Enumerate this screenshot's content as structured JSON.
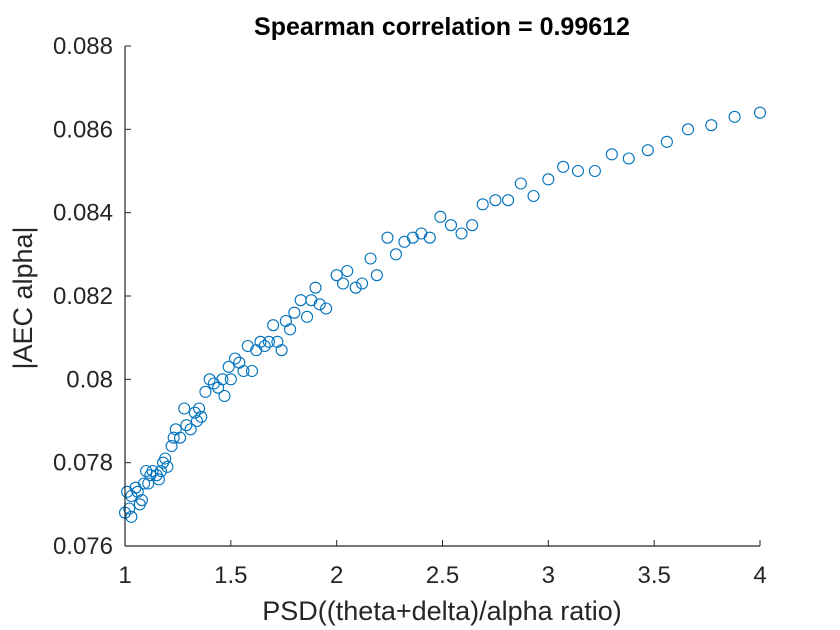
{
  "chart_data": {
    "type": "scatter",
    "title": "Spearman correlation = 0.99612",
    "xlabel": "PSD((theta+delta)/alpha ratio)",
    "ylabel": "|AEC alpha|",
    "xlim": [
      1,
      4
    ],
    "ylim": [
      0.076,
      0.088
    ],
    "x_ticks": [
      1,
      1.5,
      2,
      2.5,
      3,
      3.5,
      4
    ],
    "x_tick_labels": [
      "1",
      "1.5",
      "2",
      "2.5",
      "3",
      "3.5",
      "4"
    ],
    "y_ticks": [
      0.076,
      0.078,
      0.08,
      0.082,
      0.084,
      0.086,
      0.088
    ],
    "y_tick_labels": [
      "0.076",
      "0.078",
      "0.08",
      "0.082",
      "0.084",
      "0.086",
      "0.088"
    ],
    "grid": false,
    "marker": "circle-open",
    "color": "#0072BD",
    "points": [
      [
        1.0,
        0.0768
      ],
      [
        1.01,
        0.0773
      ],
      [
        1.02,
        0.0769
      ],
      [
        1.03,
        0.0767
      ],
      [
        1.03,
        0.0772
      ],
      [
        1.05,
        0.0774
      ],
      [
        1.06,
        0.0773
      ],
      [
        1.07,
        0.077
      ],
      [
        1.08,
        0.0771
      ],
      [
        1.09,
        0.0775
      ],
      [
        1.1,
        0.0778
      ],
      [
        1.11,
        0.0775
      ],
      [
        1.12,
        0.0777
      ],
      [
        1.13,
        0.0778
      ],
      [
        1.15,
        0.0777
      ],
      [
        1.16,
        0.0776
      ],
      [
        1.17,
        0.0778
      ],
      [
        1.18,
        0.078
      ],
      [
        1.19,
        0.0781
      ],
      [
        1.2,
        0.0779
      ],
      [
        1.22,
        0.0784
      ],
      [
        1.23,
        0.0786
      ],
      [
        1.24,
        0.0788
      ],
      [
        1.26,
        0.0786
      ],
      [
        1.28,
        0.0793
      ],
      [
        1.29,
        0.0789
      ],
      [
        1.31,
        0.0788
      ],
      [
        1.33,
        0.0792
      ],
      [
        1.34,
        0.079
      ],
      [
        1.35,
        0.0793
      ],
      [
        1.36,
        0.0791
      ],
      [
        1.38,
        0.0797
      ],
      [
        1.4,
        0.08
      ],
      [
        1.42,
        0.0799
      ],
      [
        1.44,
        0.0798
      ],
      [
        1.46,
        0.08
      ],
      [
        1.47,
        0.0796
      ],
      [
        1.49,
        0.0803
      ],
      [
        1.5,
        0.08
      ],
      [
        1.52,
        0.0805
      ],
      [
        1.54,
        0.0804
      ],
      [
        1.56,
        0.0802
      ],
      [
        1.58,
        0.0808
      ],
      [
        1.6,
        0.0802
      ],
      [
        1.62,
        0.0807
      ],
      [
        1.64,
        0.0809
      ],
      [
        1.66,
        0.0808
      ],
      [
        1.68,
        0.0809
      ],
      [
        1.7,
        0.0813
      ],
      [
        1.72,
        0.0809
      ],
      [
        1.74,
        0.0807
      ],
      [
        1.76,
        0.0814
      ],
      [
        1.78,
        0.0812
      ],
      [
        1.8,
        0.0816
      ],
      [
        1.83,
        0.0819
      ],
      [
        1.86,
        0.0815
      ],
      [
        1.88,
        0.0819
      ],
      [
        1.9,
        0.0822
      ],
      [
        1.92,
        0.0818
      ],
      [
        1.95,
        0.0817
      ],
      [
        2.0,
        0.0825
      ],
      [
        2.03,
        0.0823
      ],
      [
        2.05,
        0.0826
      ],
      [
        2.09,
        0.0822
      ],
      [
        2.12,
        0.0823
      ],
      [
        2.16,
        0.0829
      ],
      [
        2.19,
        0.0825
      ],
      [
        2.24,
        0.0834
      ],
      [
        2.28,
        0.083
      ],
      [
        2.32,
        0.0833
      ],
      [
        2.36,
        0.0834
      ],
      [
        2.4,
        0.0835
      ],
      [
        2.44,
        0.0834
      ],
      [
        2.49,
        0.0839
      ],
      [
        2.54,
        0.0837
      ],
      [
        2.59,
        0.0835
      ],
      [
        2.64,
        0.0837
      ],
      [
        2.69,
        0.0842
      ],
      [
        2.75,
        0.0843
      ],
      [
        2.81,
        0.0843
      ],
      [
        2.87,
        0.0847
      ],
      [
        2.93,
        0.0844
      ],
      [
        3.0,
        0.0848
      ],
      [
        3.07,
        0.0851
      ],
      [
        3.14,
        0.085
      ],
      [
        3.22,
        0.085
      ],
      [
        3.3,
        0.0854
      ],
      [
        3.38,
        0.0853
      ],
      [
        3.47,
        0.0855
      ],
      [
        3.56,
        0.0857
      ],
      [
        3.66,
        0.086
      ],
      [
        3.77,
        0.0861
      ],
      [
        3.88,
        0.0863
      ],
      [
        4.0,
        0.0864
      ]
    ]
  }
}
